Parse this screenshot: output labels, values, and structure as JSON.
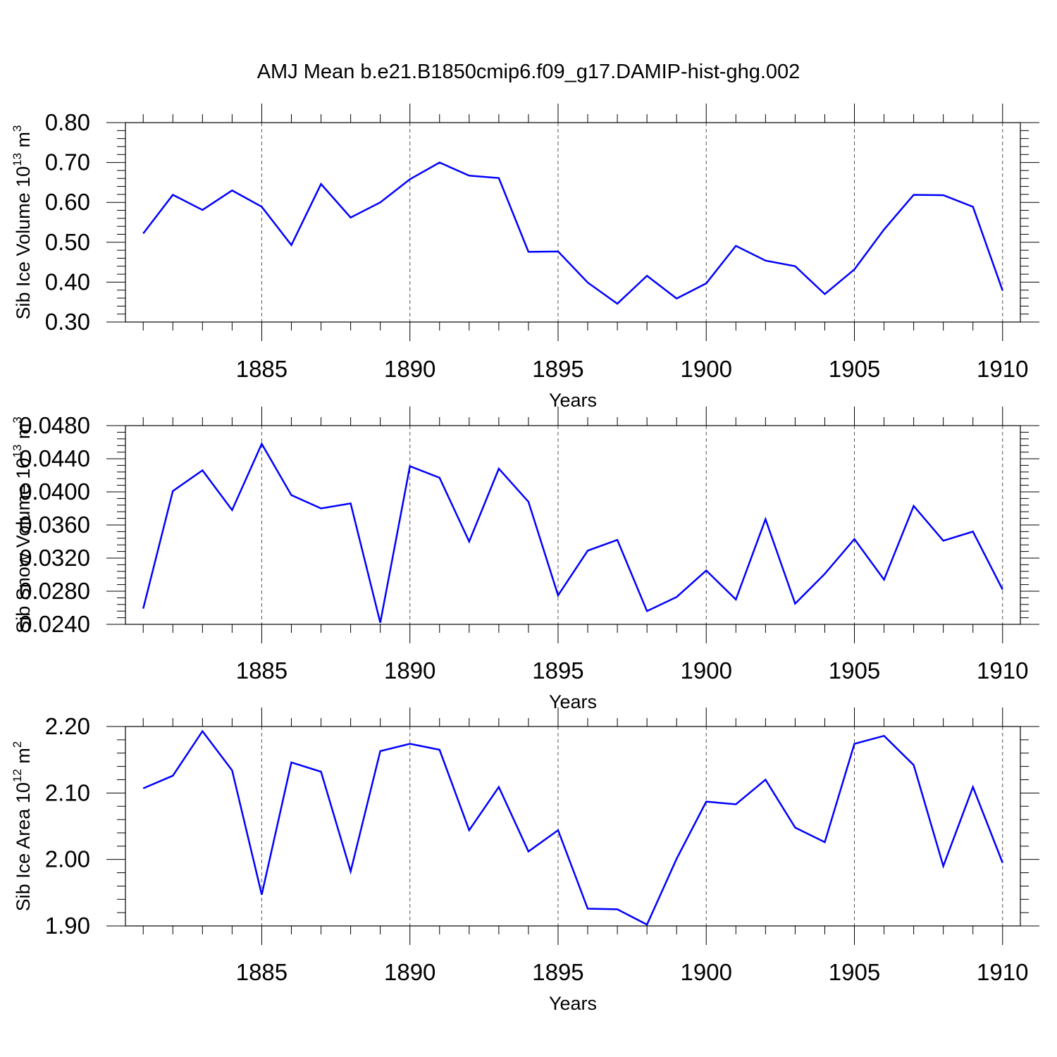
{
  "title": "AMJ Mean b.e21.B1850cmip6.f09_g17.DAMIP-hist-ghg.002",
  "chart_data": [
    {
      "type": "line",
      "title": "AMJ Mean b.e21.B1850cmip6.f09_g17.DAMIP-hist-ghg.002",
      "xlabel": "Years",
      "ylabel": {
        "base": "Sib Ice Volume 10",
        "exp": "13",
        "unit": " m",
        "unit_exp": "3"
      },
      "xlim": [
        1880.4,
        1910.6
      ],
      "ylim": [
        0.3,
        0.8
      ],
      "xticks": [
        "1885",
        "1890",
        "1895",
        "1900",
        "1905",
        "1910"
      ],
      "yticks": [
        "0.30",
        "0.40",
        "0.50",
        "0.60",
        "0.70",
        "0.80"
      ],
      "x": [
        1881,
        1882,
        1883,
        1884,
        1885,
        1886,
        1887,
        1888,
        1889,
        1890,
        1891,
        1892,
        1893,
        1894,
        1895,
        1896,
        1897,
        1898,
        1899,
        1900,
        1901,
        1902,
        1903,
        1904,
        1905,
        1906,
        1907,
        1908,
        1909,
        1910
      ],
      "series": [
        {
          "name": "Sib Ice Volume",
          "color": "#0000ff",
          "values": [
            0.522,
            0.619,
            0.581,
            0.63,
            0.589,
            0.493,
            0.646,
            0.562,
            0.6,
            0.658,
            0.7,
            0.667,
            0.661,
            0.476,
            0.477,
            0.399,
            0.346,
            0.416,
            0.359,
            0.397,
            0.491,
            0.454,
            0.44,
            0.37,
            0.432,
            0.532,
            0.619,
            0.618,
            0.589,
            0.379
          ]
        }
      ]
    },
    {
      "type": "line",
      "xlabel": "Years",
      "ylabel": {
        "base": "Sib Snow Volume 10",
        "exp": "13",
        "unit": " m",
        "unit_exp": "3"
      },
      "xlim": [
        1880.4,
        1910.6
      ],
      "ylim": [
        0.024,
        0.048
      ],
      "xticks": [
        "1885",
        "1890",
        "1895",
        "1900",
        "1905",
        "1910"
      ],
      "yticks": [
        "0.0240",
        "0.0280",
        "0.0320",
        "0.0360",
        "0.0400",
        "0.0440",
        "0.0480"
      ],
      "x": [
        1881,
        1882,
        1883,
        1884,
        1885,
        1886,
        1887,
        1888,
        1889,
        1890,
        1891,
        1892,
        1893,
        1894,
        1895,
        1896,
        1897,
        1898,
        1899,
        1900,
        1901,
        1902,
        1903,
        1904,
        1905,
        1906,
        1907,
        1908,
        1909,
        1910
      ],
      "series": [
        {
          "name": "Sib Snow Volume",
          "color": "#0000ff",
          "values": [
            0.0259,
            0.0401,
            0.0426,
            0.0378,
            0.0458,
            0.0396,
            0.038,
            0.0386,
            0.0242,
            0.0431,
            0.0417,
            0.034,
            0.0428,
            0.0388,
            0.0275,
            0.0329,
            0.0342,
            0.0256,
            0.0273,
            0.0305,
            0.027,
            0.0367,
            0.0265,
            0.0301,
            0.0343,
            0.0294,
            0.0383,
            0.0341,
            0.0352,
            0.0282
          ]
        }
      ]
    },
    {
      "type": "line",
      "xlabel": "Years",
      "ylabel": {
        "base": "Sib Ice Area 10",
        "exp": "12",
        "unit": " m",
        "unit_exp": "2"
      },
      "xlim": [
        1880.4,
        1910.6
      ],
      "ylim": [
        1.9,
        2.2
      ],
      "xticks": [
        "1885",
        "1890",
        "1895",
        "1900",
        "1905",
        "1910"
      ],
      "yticks": [
        "1.90",
        "2.00",
        "2.10",
        "2.20"
      ],
      "x": [
        1881,
        1882,
        1883,
        1884,
        1885,
        1886,
        1887,
        1888,
        1889,
        1890,
        1891,
        1892,
        1893,
        1894,
        1895,
        1896,
        1897,
        1898,
        1899,
        1900,
        1901,
        1902,
        1903,
        1904,
        1905,
        1906,
        1907,
        1908,
        1909,
        1910
      ],
      "series": [
        {
          "name": "Sib Ice Area",
          "color": "#0000ff",
          "values": [
            2.107,
            2.126,
            2.193,
            2.134,
            1.947,
            2.146,
            2.132,
            1.982,
            2.163,
            2.174,
            2.165,
            2.044,
            2.109,
            2.012,
            2.044,
            1.926,
            1.925,
            1.902,
            2.001,
            2.087,
            2.083,
            2.12,
            2.048,
            2.026,
            2.174,
            2.186,
            2.142,
            1.99,
            2.109,
            1.995
          ]
        }
      ]
    }
  ]
}
